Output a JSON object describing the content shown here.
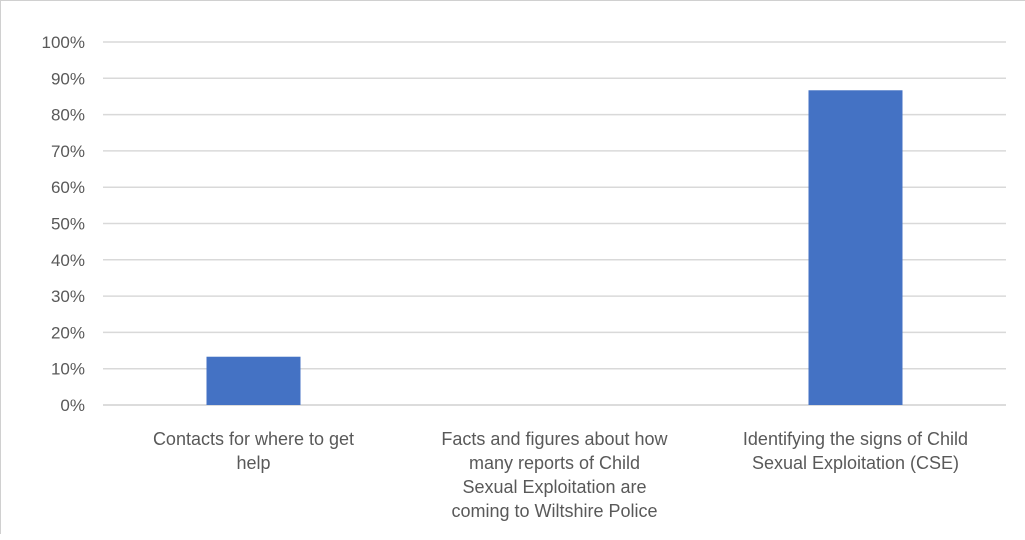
{
  "chart_data": {
    "type": "bar",
    "categories": [
      "Contacts for where to get help",
      "Facts and figures about how many reports of Child Sexual Exploitation are coming to Wiltshire Police",
      "Identifying the signs of Child Sexual Exploitation (CSE)"
    ],
    "category_label_lines": [
      [
        "Contacts for where to get",
        "help"
      ],
      [
        "Facts and figures about how",
        "many reports of Child",
        "Sexual Exploitation are",
        "coming to Wiltshire Police"
      ],
      [
        "Identifying the signs of Child",
        "Sexual Exploitation (CSE)"
      ]
    ],
    "values": [
      0.133,
      0,
      0.867
    ],
    "ylim": [
      0,
      1
    ],
    "yticks": [
      "0%",
      "10%",
      "20%",
      "30%",
      "40%",
      "50%",
      "60%",
      "70%",
      "80%",
      "90%",
      "100%"
    ],
    "title": "",
    "xlabel": "",
    "ylabel": "",
    "grid": true,
    "legend": false,
    "bar_color": "#4472C4",
    "gridline_color": "#d9d9d9",
    "text_color": "#595959"
  }
}
